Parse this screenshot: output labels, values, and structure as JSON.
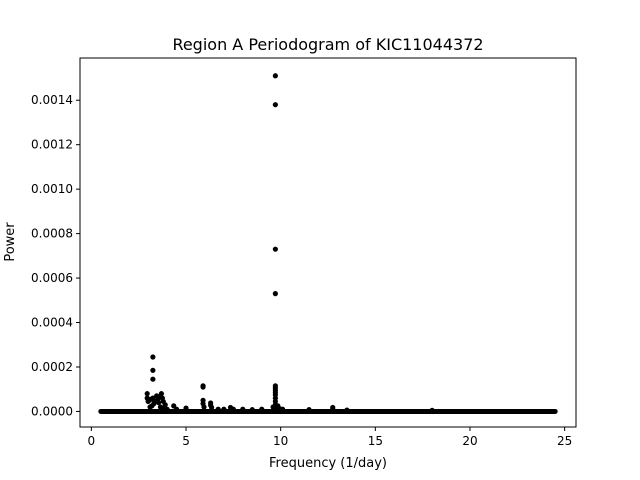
{
  "chart_data": {
    "type": "scatter",
    "title": "Region A  Periodogram of KIC11044372",
    "xlabel": "Frequency (1/day)",
    "ylabel": "Power",
    "xlim": [
      -0.6,
      25.6
    ],
    "ylim": [
      -7e-05,
      0.00159
    ],
    "xticks": [
      0,
      5,
      10,
      15,
      20,
      25
    ],
    "xtick_labels": [
      "0",
      "5",
      "10",
      "15",
      "20",
      "25"
    ],
    "yticks": [
      0,
      0.0002,
      0.0004,
      0.0006,
      0.0008,
      0.001,
      0.0012,
      0.0014
    ],
    "ytick_labels": [
      "0.0000",
      "0.0002",
      "0.0004",
      "0.0006",
      "0.0008",
      "0.0010",
      "0.0012",
      "0.0014"
    ],
    "grid": false,
    "legend": "none",
    "baseline": {
      "x_start": 0.5,
      "x_end": 24.5,
      "y": 0
    },
    "series": [
      {
        "color": "#000000",
        "points": [
          [
            9.72,
            0.00151
          ],
          [
            9.72,
            0.00138
          ],
          [
            9.72,
            0.00073
          ],
          [
            9.72,
            0.00053
          ],
          [
            9.72,
            0.000115
          ],
          [
            9.72,
            0.000105
          ],
          [
            9.72,
            9.5e-05
          ],
          [
            9.72,
            8.5e-05
          ],
          [
            9.72,
            7.5e-05
          ],
          [
            9.72,
            6e-05
          ],
          [
            9.72,
            4.5e-05
          ],
          [
            9.72,
            3e-05
          ],
          [
            9.72,
            1.5e-05
          ],
          [
            9.6,
            2e-05
          ],
          [
            9.85,
            2.5e-05
          ],
          [
            9.95,
            1.2e-05
          ],
          [
            10.1,
            1e-05
          ],
          [
            3.25,
            0.000245
          ],
          [
            3.25,
            0.000185
          ],
          [
            3.25,
            0.000145
          ],
          [
            2.95,
            8e-05
          ],
          [
            2.95,
            6e-05
          ],
          [
            3.0,
            4.5e-05
          ],
          [
            3.05,
            5e-05
          ],
          [
            3.15,
            5.5e-05
          ],
          [
            3.25,
            6e-05
          ],
          [
            3.3,
            3.5e-05
          ],
          [
            3.35,
            4.5e-05
          ],
          [
            3.45,
            7e-05
          ],
          [
            3.5,
            5e-05
          ],
          [
            3.55,
            4e-05
          ],
          [
            3.6,
            6.5e-05
          ],
          [
            3.7,
            8e-05
          ],
          [
            3.75,
            6e-05
          ],
          [
            3.8,
            4.5e-05
          ],
          [
            3.9,
            3e-05
          ],
          [
            3.1,
            2e-05
          ],
          [
            3.2,
            2.5e-05
          ],
          [
            3.65,
            2e-05
          ],
          [
            3.85,
            1.5e-05
          ],
          [
            4.0,
            1e-05
          ],
          [
            4.35,
            2.5e-05
          ],
          [
            4.5,
            1e-05
          ],
          [
            5.0,
            1.5e-05
          ],
          [
            5.9,
            0.000115
          ],
          [
            5.9,
            0.00011
          ],
          [
            5.9,
            5e-05
          ],
          [
            5.9,
            3.5e-05
          ],
          [
            5.95,
            2e-05
          ],
          [
            6.3,
            3.8e-05
          ],
          [
            6.3,
            2.8e-05
          ],
          [
            6.35,
            1.8e-05
          ],
          [
            6.7,
            1e-05
          ],
          [
            7.0,
            1e-05
          ],
          [
            7.35,
            1.8e-05
          ],
          [
            7.5,
            1e-05
          ],
          [
            8.0,
            1e-05
          ],
          [
            8.5,
            8e-06
          ],
          [
            9.0,
            1e-05
          ],
          [
            11.5,
            8e-06
          ],
          [
            12.75,
            1.8e-05
          ],
          [
            12.75,
            1e-05
          ],
          [
            13.5,
            6e-06
          ],
          [
            18.0,
            5e-06
          ]
        ]
      }
    ]
  }
}
